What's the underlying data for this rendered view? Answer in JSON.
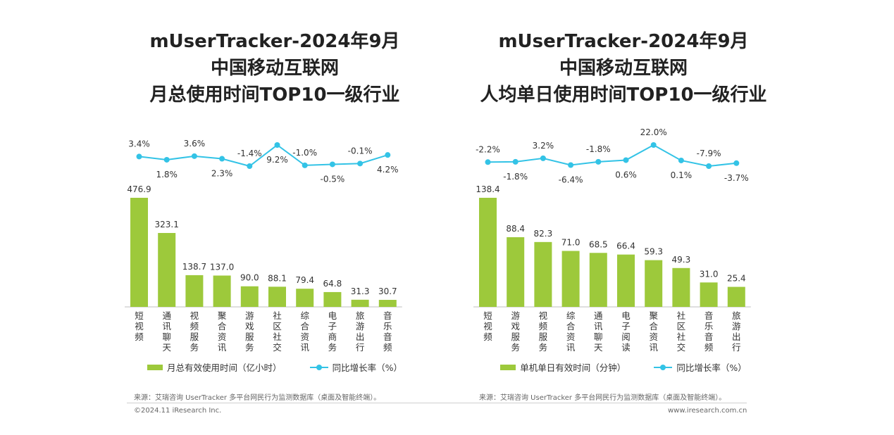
{
  "chart_data": [
    {
      "type": "bar",
      "title_lines": [
        "mUserTracker-2024年9月",
        "中国移动互联网",
        "月总使用时间TOP10一级行业"
      ],
      "categories": [
        "短视频",
        "通讯聊天",
        "视频服务",
        "聚合资讯",
        "游戏服务",
        "社区社交",
        "综合资讯",
        "电子商务",
        "旅游出行",
        "音乐音频"
      ],
      "series": [
        {
          "name": "月总有效使用时间（亿小时）",
          "type": "bar",
          "color": "#9dc93b",
          "values": [
            476.9,
            323.1,
            138.7,
            137.0,
            90.0,
            88.1,
            79.4,
            64.8,
            31.3,
            30.7
          ],
          "labels": [
            "476.9",
            "323.1",
            "138.7",
            "137.0",
            "90.0",
            "88.1",
            "79.4",
            "64.8",
            "31.3",
            "30.7"
          ]
        },
        {
          "name": "同比增长率（%）",
          "type": "line",
          "color": "#33c3e6",
          "values": [
            3.4,
            1.8,
            3.6,
            2.3,
            -1.4,
            9.2,
            -1.0,
            -0.5,
            -0.1,
            4.2
          ],
          "labels": [
            "3.4%",
            "1.8%",
            "3.6%",
            "2.3%",
            "-1.4%",
            "9.2%",
            "-1.0%",
            "-0.5%",
            "-0.1%",
            "4.2%"
          ]
        }
      ]
    },
    {
      "type": "bar",
      "title_lines": [
        "mUserTracker-2024年9月",
        "中国移动互联网",
        "人均单日使用时间TOP10一级行业"
      ],
      "categories": [
        "短视频",
        "游戏服务",
        "视频服务",
        "综合资讯",
        "通讯聊天",
        "电子阅读",
        "聚合资讯",
        "社区社交",
        "音乐音频",
        "旅游出行"
      ],
      "series": [
        {
          "name": "单机单日有效时间（分钟）",
          "type": "bar",
          "color": "#9dc93b",
          "values": [
            138.4,
            88.4,
            82.3,
            71.0,
            68.5,
            66.4,
            59.3,
            49.3,
            31.0,
            25.4
          ],
          "labels": [
            "138.4",
            "88.4",
            "82.3",
            "71.0",
            "68.5",
            "66.4",
            "59.3",
            "49.3",
            "31.0",
            "25.4"
          ]
        },
        {
          "name": "同比增长率（%）",
          "type": "line",
          "color": "#33c3e6",
          "values": [
            -2.2,
            -1.8,
            3.2,
            -6.4,
            -1.8,
            0.6,
            22.0,
            0.1,
            -7.9,
            -3.7
          ],
          "labels": [
            "-2.2%",
            "-1.8%",
            "3.2%",
            "-6.4%",
            "-1.8%",
            "0.6%",
            "22.0%",
            "0.1%",
            "-7.9%",
            "-3.7%"
          ]
        }
      ]
    }
  ],
  "source_left": "来源：艾瑞咨询 UserTracker 多平台网民行为监测数据库（桌面及智能终端）。",
  "source_right": "来源：艾瑞咨询 UserTracker 多平台网民行为监测数据库（桌面及智能终端）。",
  "footer_left": "©2024.11 iResearch Inc.",
  "footer_right": "www.iresearch.com.cn"
}
